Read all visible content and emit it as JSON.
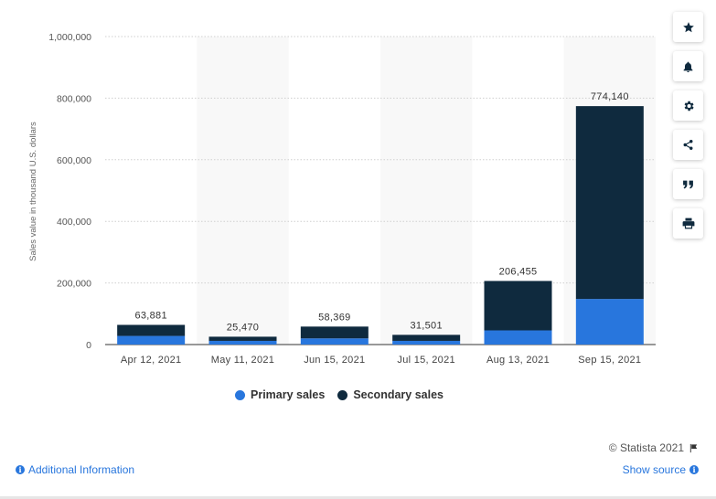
{
  "chart_data": {
    "type": "bar",
    "stacked": true,
    "categories": [
      "Apr 12, 2021",
      "May 11, 2021",
      "Jun 15, 2021",
      "Jul 15, 2021",
      "Aug 13, 2021",
      "Sep 15, 2021"
    ],
    "series": [
      {
        "name": "Primary sales",
        "color": "#2876dd",
        "values": [
          28000,
          12000,
          20000,
          12000,
          46000,
          148000
        ]
      },
      {
        "name": "Secondary sales",
        "color": "#0f2a3e",
        "values": [
          35881,
          13470,
          38369,
          19501,
          160455,
          626140
        ]
      }
    ],
    "totals": [
      63881,
      25470,
      58369,
      31501,
      206455,
      774140
    ],
    "total_labels": [
      "63,881",
      "25,470",
      "58,369",
      "31,501",
      "206,455",
      "774,140"
    ],
    "ylabel": "Sales value in thousand U.S. dollars",
    "ylim": [
      0,
      1000000
    ],
    "yticks": [
      0,
      200000,
      400000,
      600000,
      800000,
      1000000
    ],
    "ytick_labels": [
      "0",
      "200,000",
      "400,000",
      "600,000",
      "800,000",
      "1,000,000"
    ],
    "grid": true,
    "legend_position": "bottom"
  },
  "legend": {
    "primary_label": "Primary sales",
    "secondary_label": "Secondary sales",
    "primary_color": "#2876dd",
    "secondary_color": "#0f2a3e"
  },
  "sidebar": {
    "buttons": [
      {
        "icon": "star-icon"
      },
      {
        "icon": "bell-icon"
      },
      {
        "icon": "gear-icon"
      },
      {
        "icon": "share-icon"
      },
      {
        "icon": "quote-icon"
      },
      {
        "icon": "print-icon"
      }
    ]
  },
  "footer": {
    "copyright": "© Statista 2021",
    "additional_info": "Additional Information",
    "show_source": "Show source"
  }
}
